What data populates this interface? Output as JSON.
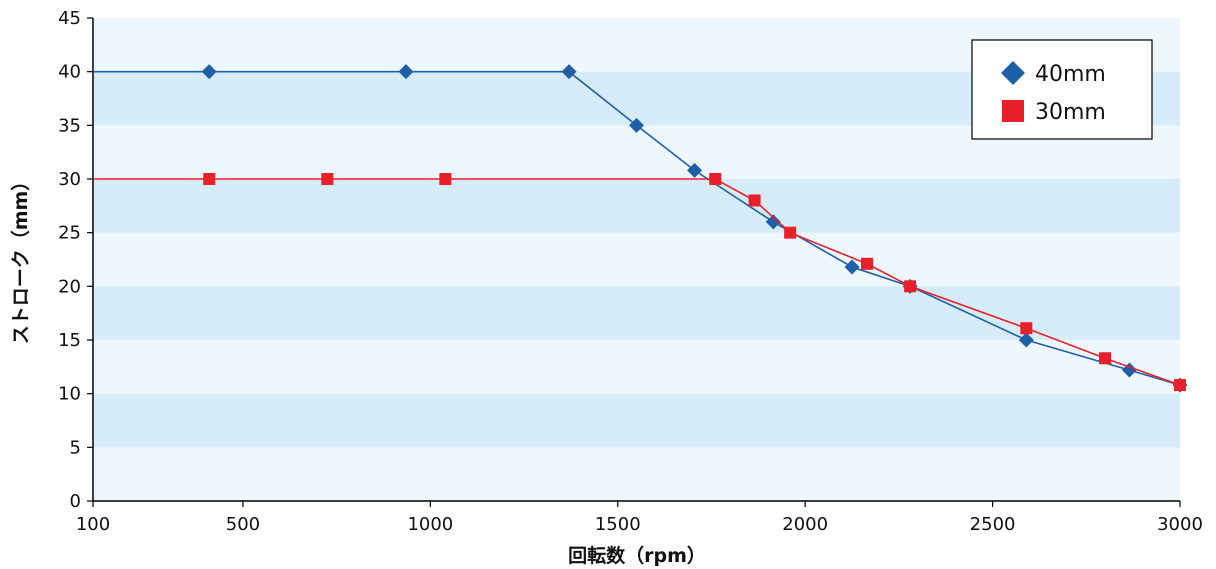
{
  "chart_data": {
    "type": "line",
    "xlabel": "回転数（rpm）",
    "ylabel": "ストローク（mm）",
    "xlim": [
      100,
      3000
    ],
    "ylim": [
      0,
      45
    ],
    "xticks": [
      100,
      500,
      1000,
      1500,
      2000,
      2500,
      3000
    ],
    "yticks": [
      0,
      5,
      10,
      15,
      20,
      25,
      30,
      35,
      40,
      45
    ],
    "grid": "horizontal alternating bands",
    "legend_position": "top-right",
    "colors": {
      "band_light": "#eef7fd",
      "band_dark": "#d6ecf8",
      "series_40": "#1f5fa8",
      "series_30": "#e8202a"
    },
    "series": [
      {
        "name": "40mm",
        "marker": "diamond",
        "color": "#1f5fa8",
        "line_start_x": 100,
        "line_start_y": 40,
        "points": [
          [
            410,
            40
          ],
          [
            935,
            40
          ],
          [
            1370,
            40
          ],
          [
            1550,
            35
          ],
          [
            1705,
            30.8
          ],
          [
            1915,
            26
          ],
          [
            2125,
            21.8
          ],
          [
            2280,
            20
          ],
          [
            2590,
            15
          ],
          [
            2865,
            12.2
          ],
          [
            3000,
            10.8
          ]
        ]
      },
      {
        "name": "30mm",
        "marker": "square",
        "color": "#e8202a",
        "line_start_x": 100,
        "line_start_y": 30,
        "points": [
          [
            410,
            30
          ],
          [
            725,
            30
          ],
          [
            1040,
            30
          ],
          [
            1760,
            30
          ],
          [
            1865,
            28
          ],
          [
            1960,
            25
          ],
          [
            2165,
            22.1
          ],
          [
            2280,
            20
          ],
          [
            2590,
            16.1
          ],
          [
            2800,
            13.3
          ],
          [
            3000,
            10.8
          ]
        ]
      }
    ]
  }
}
